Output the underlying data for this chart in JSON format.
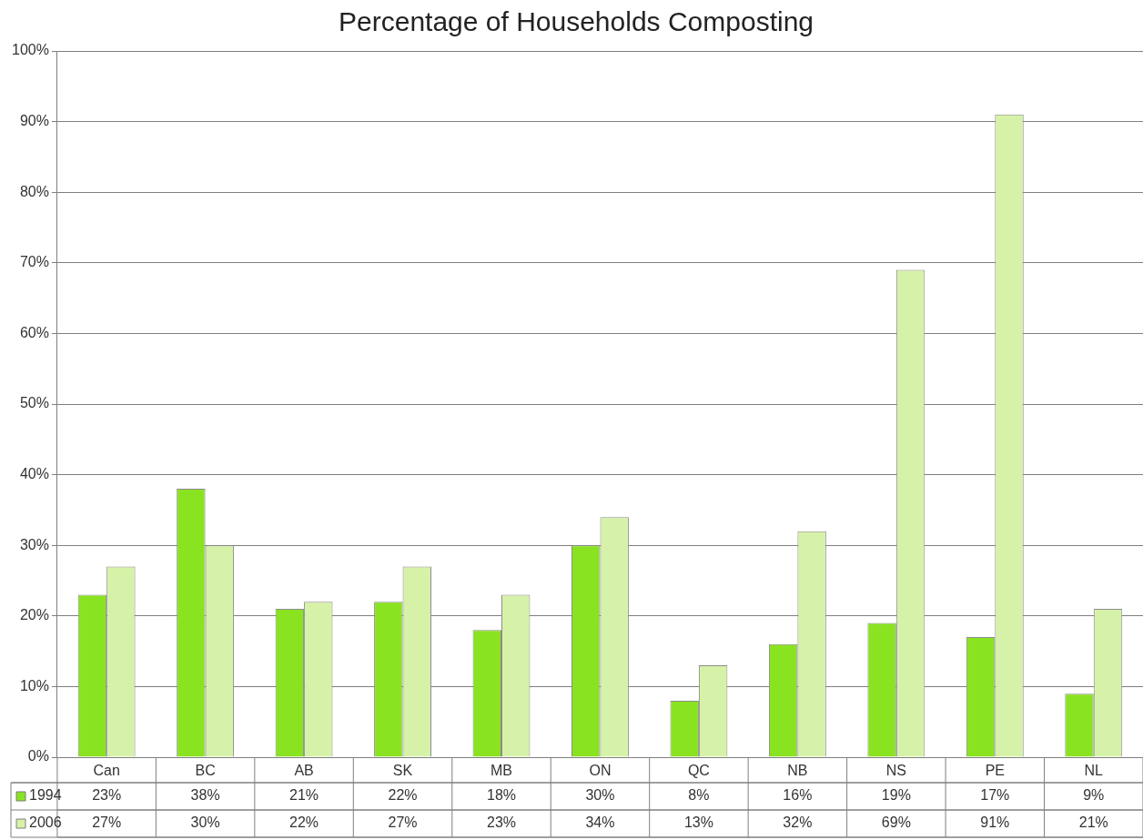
{
  "chart_data": {
    "type": "bar",
    "title": "Percentage of Households Composting",
    "categories": [
      "Can",
      "BC",
      "AB",
      "SK",
      "MB",
      "ON",
      "QC",
      "NB",
      "NS",
      "PE",
      "NL"
    ],
    "series": [
      {
        "name": "1994",
        "color": "#8ae320",
        "values": [
          23,
          38,
          21,
          22,
          18,
          30,
          8,
          16,
          19,
          17,
          9
        ],
        "value_labels": [
          "23%",
          "38%",
          "21%",
          "22%",
          "18%",
          "30%",
          "8%",
          "16%",
          "19%",
          "17%",
          "9%"
        ]
      },
      {
        "name": "2006",
        "color": "#d6f2a8",
        "values": [
          27,
          30,
          22,
          27,
          23,
          34,
          13,
          32,
          69,
          91,
          21
        ],
        "value_labels": [
          "27%",
          "30%",
          "22%",
          "27%",
          "23%",
          "34%",
          "13%",
          "32%",
          "69%",
          "91%",
          "21%"
        ]
      }
    ],
    "ylim": [
      0,
      100
    ],
    "yticks": [
      {
        "value": 0,
        "label": "0%"
      },
      {
        "value": 10,
        "label": "10%"
      },
      {
        "value": 20,
        "label": "20%"
      },
      {
        "value": 30,
        "label": "30%"
      },
      {
        "value": 40,
        "label": "40%"
      },
      {
        "value": 50,
        "label": "50%"
      },
      {
        "value": 60,
        "label": "60%"
      },
      {
        "value": 70,
        "label": "70%"
      },
      {
        "value": 80,
        "label": "80%"
      },
      {
        "value": 90,
        "label": "90%"
      },
      {
        "value": 100,
        "label": "100%"
      }
    ],
    "grid": "y",
    "legend": "bottom left"
  }
}
